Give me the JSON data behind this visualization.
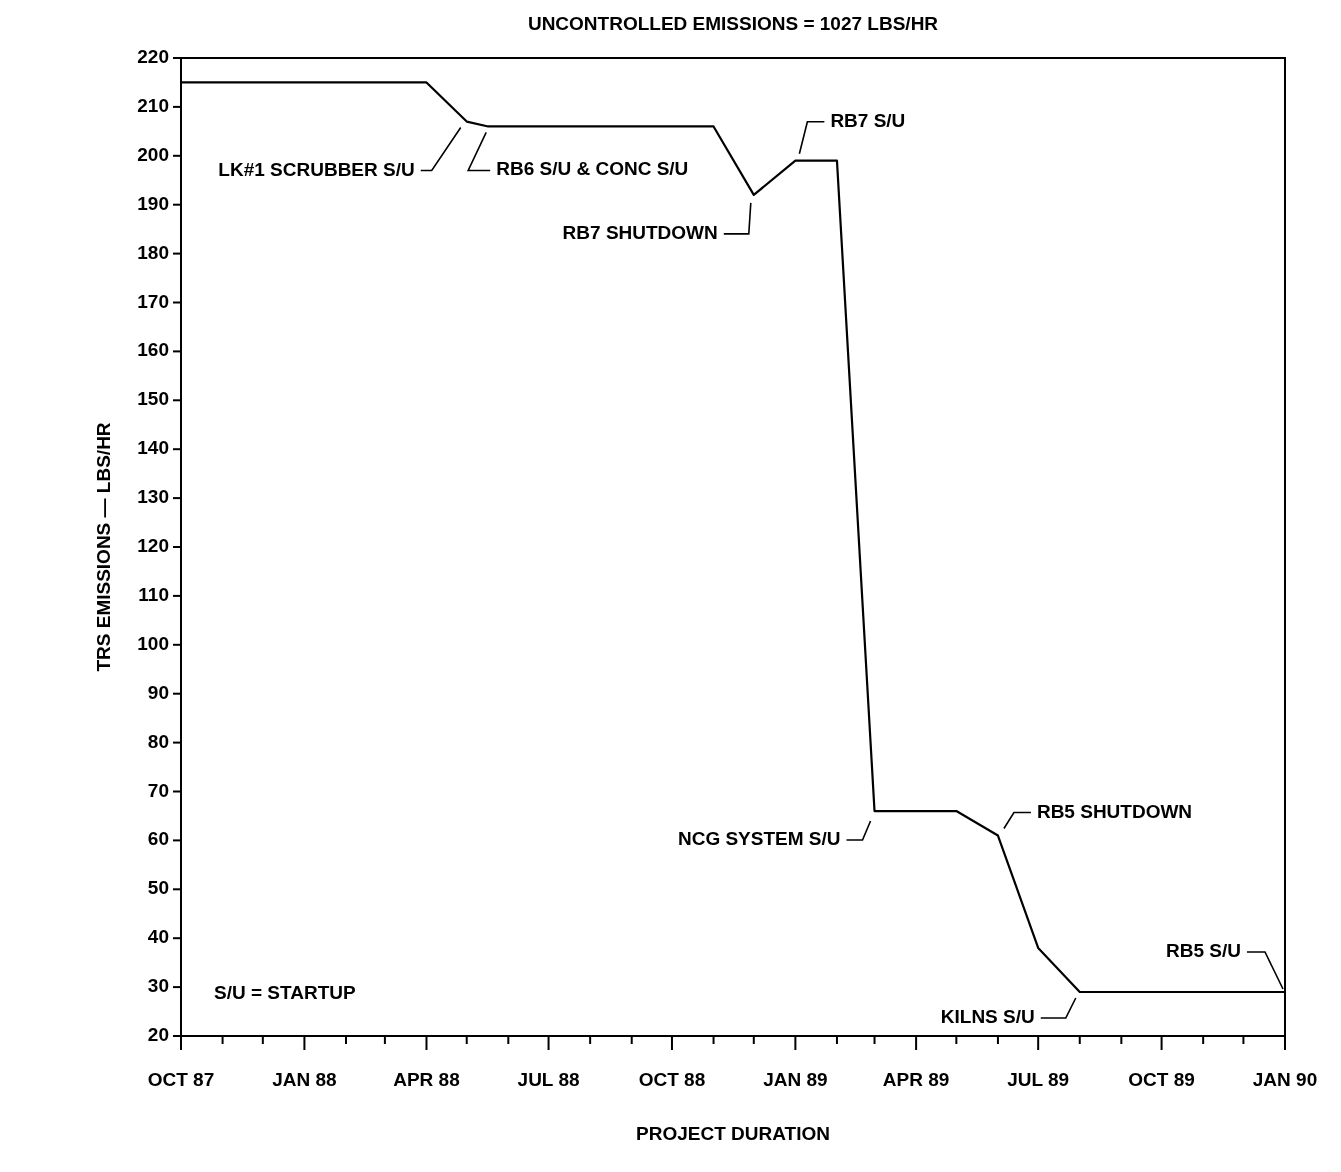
{
  "chart_data": {
    "type": "line",
    "title": "UNCONTROLLED EMISSIONS = 1027 LBS/HR",
    "xlabel": "PROJECT DURATION",
    "ylabel": "TRS EMISSIONS  —  LBS/HR",
    "x": [
      "1987-10-01",
      "1988-04-01",
      "1988-05-01",
      "1988-05-17",
      "1988-11-01",
      "1988-12-01",
      "1989-01-01",
      "1989-02-01",
      "1989-03-01",
      "1989-05-01",
      "1989-06-01",
      "1989-07-01",
      "1989-08-01",
      "1990-01-01"
    ],
    "series": [
      {
        "color": "#000000",
        "values": [
          215,
          215,
          207,
          206,
          206,
          192,
          199,
          199,
          66,
          66,
          61,
          38,
          29,
          29
        ]
      }
    ],
    "xlim": [
      "1987-10-01",
      "1990-01-01"
    ],
    "xticks": [
      {
        "value": "1987-10-01",
        "label": "OCT 87"
      },
      {
        "value": "1987-11-01",
        "label": null
      },
      {
        "value": "1987-12-01",
        "label": null
      },
      {
        "value": "1988-01-01",
        "label": "JAN 88"
      },
      {
        "value": "1988-02-01",
        "label": null
      },
      {
        "value": "1988-03-01",
        "label": null
      },
      {
        "value": "1988-04-01",
        "label": "APR 88"
      },
      {
        "value": "1988-05-01",
        "label": null
      },
      {
        "value": "1988-06-01",
        "label": null
      },
      {
        "value": "1988-07-01",
        "label": "JUL 88"
      },
      {
        "value": "1988-08-01",
        "label": null
      },
      {
        "value": "1988-09-01",
        "label": null
      },
      {
        "value": "1988-10-01",
        "label": "OCT 88"
      },
      {
        "value": "1988-11-01",
        "label": null
      },
      {
        "value": "1988-12-01",
        "label": null
      },
      {
        "value": "1989-01-01",
        "label": "JAN 89"
      },
      {
        "value": "1989-02-01",
        "label": null
      },
      {
        "value": "1989-03-01",
        "label": null
      },
      {
        "value": "1989-04-01",
        "label": "APR 89"
      },
      {
        "value": "1989-05-01",
        "label": null
      },
      {
        "value": "1989-06-01",
        "label": null
      },
      {
        "value": "1989-07-01",
        "label": "JUL 89"
      },
      {
        "value": "1989-08-01",
        "label": null
      },
      {
        "value": "1989-09-01",
        "label": null
      },
      {
        "value": "1989-10-01",
        "label": "OCT 89"
      },
      {
        "value": "1989-11-01",
        "label": null
      },
      {
        "value": "1989-12-01",
        "label": null
      },
      {
        "value": "1990-01-01",
        "label": "JAN 90"
      }
    ],
    "ylim": [
      20,
      220
    ],
    "yticks": [
      20,
      30,
      40,
      50,
      60,
      70,
      80,
      90,
      100,
      110,
      120,
      130,
      140,
      150,
      160,
      170,
      180,
      190,
      200,
      210,
      220
    ],
    "annotations": [
      {
        "text": "LK#1 SCRUBBER S/U",
        "x": "1988-05-01",
        "y": 207
      },
      {
        "text": "RB6 S/U & CONC S/U",
        "x": "1988-05-17",
        "y": 206
      },
      {
        "text": "RB7 SHUTDOWN",
        "x": "1988-12-01",
        "y": 192
      },
      {
        "text": "RB7 S/U",
        "x": "1989-01-01",
        "y": 199
      },
      {
        "text": "NCG SYSTEM S/U",
        "x": "1989-03-01",
        "y": 66
      },
      {
        "text": "RB5 SHUTDOWN",
        "x": "1989-06-01",
        "y": 61
      },
      {
        "text": "KILNS S/U",
        "x": "1989-08-01",
        "y": 29
      },
      {
        "text": "RB5 S/U",
        "x": "1990-01-01",
        "y": 29
      },
      "S/U = STARTUP"
    ]
  }
}
